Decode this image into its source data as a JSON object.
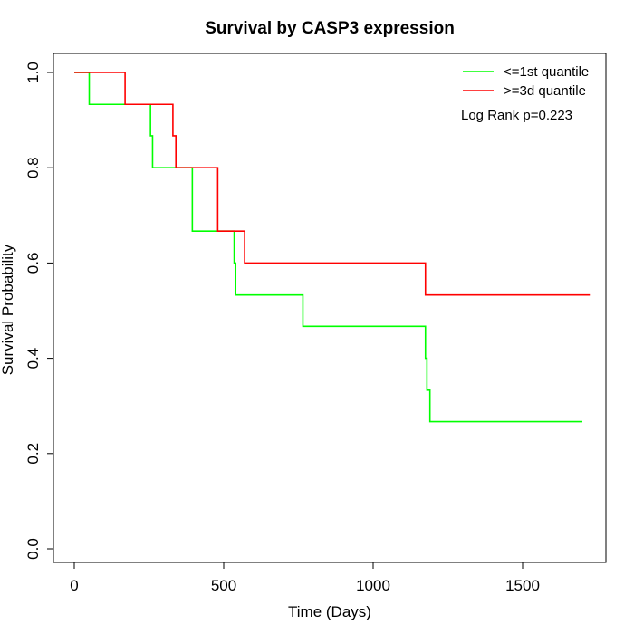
{
  "chart_data": {
    "type": "line",
    "title": "Survival by CASP3 expression",
    "xlabel": "Time (Days)",
    "ylabel": "Survival Probability",
    "xlim": [
      0,
      1760
    ],
    "ylim": [
      0,
      1.0
    ],
    "x_ticks": [
      0,
      500,
      1000,
      1500
    ],
    "x_tick_labels": [
      "0",
      "500",
      "1000",
      "1500"
    ],
    "y_ticks": [
      0.0,
      0.2,
      0.4,
      0.6,
      0.8,
      1.0
    ],
    "y_tick_labels": [
      "0.0",
      "0.2",
      "0.4",
      "0.6",
      "0.8",
      "1.0"
    ],
    "grid": false,
    "legend_position": "top-right",
    "annotation": "Log Rank p=0.223",
    "series": [
      {
        "name": "<=1st quantile",
        "color": "#00ff00",
        "step": true,
        "x": [
          0,
          50,
          255,
          262,
          395,
          535,
          540,
          765,
          1175,
          1180,
          1190,
          1700
        ],
        "y": [
          1.0,
          0.933,
          0.867,
          0.8,
          0.667,
          0.6,
          0.533,
          0.467,
          0.4,
          0.333,
          0.267,
          0.267
        ]
      },
      {
        "name": ">=3d quantile",
        "color": "#ff0000",
        "step": true,
        "x": [
          0,
          170,
          330,
          340,
          480,
          570,
          1175,
          1725
        ],
        "y": [
          1.0,
          0.933,
          0.867,
          0.8,
          0.667,
          0.6,
          0.533,
          0.533
        ]
      }
    ]
  }
}
